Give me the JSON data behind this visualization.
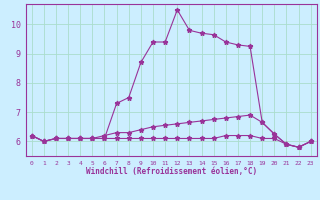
{
  "xlabel": "Windchill (Refroidissement éolien,°C)",
  "ylabel": "",
  "background_color": "#cceeff",
  "grid_color": "#aaddcc",
  "line_color": "#993399",
  "x_ticks": [
    0,
    1,
    2,
    3,
    4,
    5,
    6,
    7,
    8,
    9,
    10,
    11,
    12,
    13,
    14,
    15,
    16,
    17,
    18,
    19,
    20,
    21,
    22,
    23
  ],
  "y_ticks": [
    6,
    7,
    8,
    9,
    10
  ],
  "ylim": [
    5.5,
    10.7
  ],
  "xlim": [
    -0.5,
    23.5
  ],
  "line1_y": [
    6.2,
    6.0,
    6.1,
    6.1,
    6.1,
    6.1,
    6.1,
    7.3,
    7.5,
    8.7,
    9.4,
    9.4,
    10.5,
    9.8,
    9.7,
    9.65,
    9.4,
    9.3,
    9.25,
    6.65,
    6.25,
    5.9,
    5.8,
    6.0
  ],
  "line2_y": [
    6.2,
    6.0,
    6.1,
    6.1,
    6.1,
    6.1,
    6.2,
    6.3,
    6.3,
    6.4,
    6.5,
    6.55,
    6.6,
    6.65,
    6.7,
    6.75,
    6.8,
    6.85,
    6.9,
    6.65,
    6.25,
    5.9,
    5.8,
    6.0
  ],
  "line3_y": [
    6.2,
    6.0,
    6.1,
    6.1,
    6.1,
    6.1,
    6.1,
    6.1,
    6.1,
    6.1,
    6.1,
    6.1,
    6.1,
    6.1,
    6.1,
    6.1,
    6.2,
    6.2,
    6.2,
    6.1,
    6.1,
    5.9,
    5.8,
    6.0
  ]
}
